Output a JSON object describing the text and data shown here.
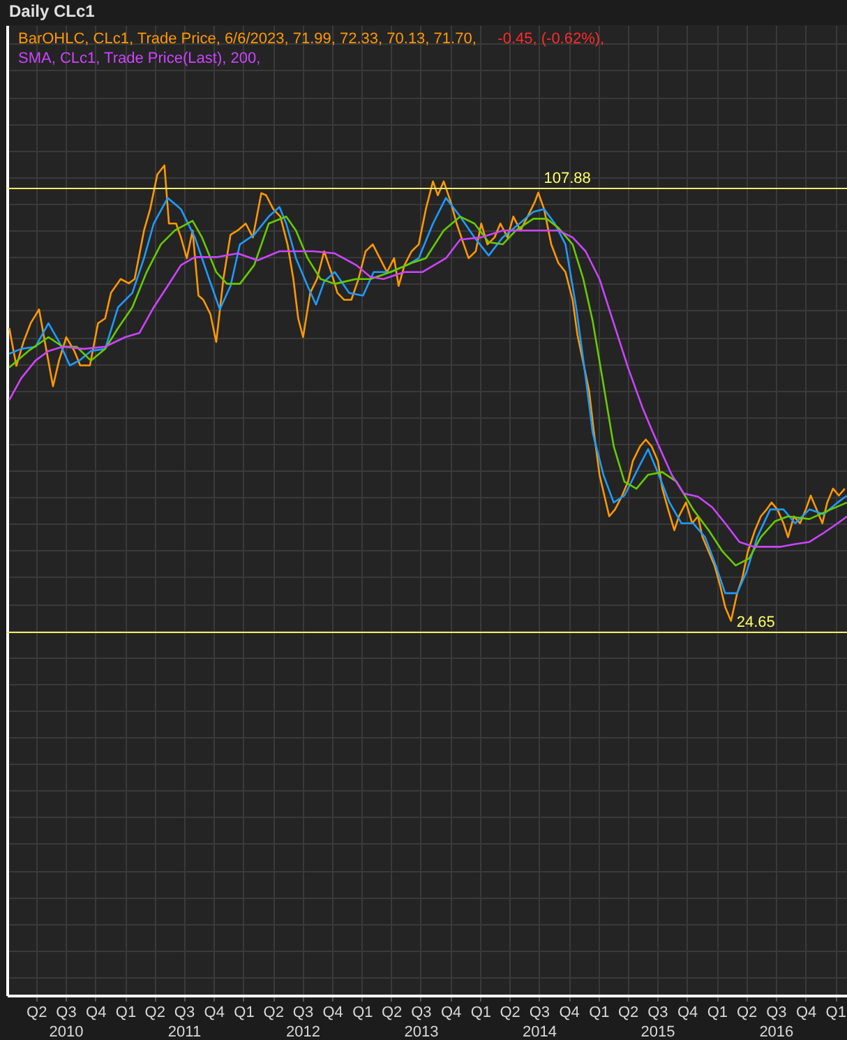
{
  "chart_data": {
    "type": "line",
    "title": "Daily CLc1",
    "annotations": [
      "-0.45, (-0.62%),"
    ],
    "xlim": [
      "2010-01-01",
      "2017-02-06"
    ],
    "ylim": [
      -43.4,
      138.5
    ],
    "xticks": [
      {
        "value": "2010-04-01",
        "label": "Q2"
      },
      {
        "value": "2010-07-01",
        "label": "Q3\n2010"
      },
      {
        "value": "2010-10-01",
        "label": "Q4"
      },
      {
        "value": "2011-01-01",
        "label": "Q1"
      },
      {
        "value": "2011-04-01",
        "label": "Q2"
      },
      {
        "value": "2011-07-01",
        "label": "Q3\n2011"
      },
      {
        "value": "2011-10-01",
        "label": "Q4"
      },
      {
        "value": "2012-01-01",
        "label": "Q1"
      },
      {
        "value": "2012-04-01",
        "label": "Q2"
      },
      {
        "value": "2012-07-01",
        "label": "Q3\n2012"
      },
      {
        "value": "2012-10-01",
        "label": "Q4"
      },
      {
        "value": "2013-01-01",
        "label": "Q1"
      },
      {
        "value": "2013-04-01",
        "label": "Q2"
      },
      {
        "value": "2013-07-01",
        "label": "Q3\n2013"
      },
      {
        "value": "2013-10-01",
        "label": "Q4"
      },
      {
        "value": "2014-01-01",
        "label": "Q1"
      },
      {
        "value": "2014-04-01",
        "label": "Q2"
      },
      {
        "value": "2014-07-01",
        "label": "Q3\n2014"
      },
      {
        "value": "2014-10-01",
        "label": "Q4"
      },
      {
        "value": "2015-01-01",
        "label": "Q1"
      },
      {
        "value": "2015-04-01",
        "label": "Q2"
      },
      {
        "value": "2015-07-01",
        "label": "Q3\n2015"
      },
      {
        "value": "2015-10-01",
        "label": "Q4"
      },
      {
        "value": "2016-01-01",
        "label": "Q1"
      },
      {
        "value": "2016-04-01",
        "label": "Q2"
      },
      {
        "value": "2016-07-01",
        "label": "Q3\n2016"
      },
      {
        "value": "2016-10-01",
        "label": "Q4"
      },
      {
        "value": "2017-01-01",
        "label": "Q1"
      }
    ],
    "yticks": [
      {
        "value": -40,
        "label": null
      },
      {
        "value": -35,
        "label": null
      },
      {
        "value": -30,
        "label": null
      },
      {
        "value": -25,
        "label": null
      },
      {
        "value": -20,
        "label": null
      },
      {
        "value": -15,
        "label": null
      },
      {
        "value": -10,
        "label": null
      },
      {
        "value": -5,
        "label": null
      },
      {
        "value": 0,
        "label": null
      },
      {
        "value": 5,
        "label": null
      },
      {
        "value": 10,
        "label": null
      },
      {
        "value": 15,
        "label": null
      },
      {
        "value": 20,
        "label": null
      },
      {
        "value": 25,
        "label": null
      },
      {
        "value": 30,
        "label": null
      },
      {
        "value": 35,
        "label": null
      },
      {
        "value": 40,
        "label": null
      },
      {
        "value": 45,
        "label": null
      },
      {
        "value": 50,
        "label": null
      },
      {
        "value": 55,
        "label": null
      },
      {
        "value": 60,
        "label": null
      },
      {
        "value": 65,
        "label": null
      },
      {
        "value": 70,
        "label": null
      },
      {
        "value": 75,
        "label": null
      },
      {
        "value": 80,
        "label": null
      },
      {
        "value": 85,
        "label": null
      },
      {
        "value": 90,
        "label": null
      },
      {
        "value": 95,
        "label": null
      },
      {
        "value": 100,
        "label": null
      },
      {
        "value": 105,
        "label": null
      },
      {
        "value": 110,
        "label": null
      },
      {
        "value": 115,
        "label": null
      },
      {
        "value": 120,
        "label": null
      },
      {
        "value": 125,
        "label": null
      },
      {
        "value": 130,
        "label": null
      },
      {
        "value": 135,
        "label": null
      }
    ],
    "tick_labels": "x",
    "grid": true,
    "legend": "top left",
    "line_style": "solid",
    "ref_lines": [
      {
        "axis": "y",
        "value": 107.88,
        "label": "107.88",
        "color": "#eeee66"
      },
      {
        "axis": "y",
        "value": 24.65,
        "label": "24.65",
        "color": "#eeee66"
      }
    ],
    "series": [
      {
        "name": "BarOHLC, CLc1, Trade Price, 6/6/2023, 71.99, 72.33, 70.13, 71.70,",
        "color": "#ff9900",
        "x": [
          "2010-01-08",
          "2010-01-30",
          "2010-02-21",
          "2010-03-15",
          "2010-04-10",
          "2010-04-28",
          "2010-05-23",
          "2010-06-11",
          "2010-07-03",
          "2010-07-28",
          "2010-08-15",
          "2010-09-14",
          "2010-10-09",
          "2010-10-31",
          "2010-11-18",
          "2010-12-18",
          "2011-01-12",
          "2011-01-30",
          "2011-02-28",
          "2011-03-19",
          "2011-04-10",
          "2011-05-02",
          "2011-05-16",
          "2011-06-07",
          "2011-06-22",
          "2011-07-10",
          "2011-07-28",
          "2011-08-15",
          "2011-08-30",
          "2011-09-21",
          "2011-10-09",
          "2011-10-31",
          "2011-11-22",
          "2011-12-14",
          "2012-01-08",
          "2012-01-30",
          "2012-02-25",
          "2012-03-11",
          "2012-04-02",
          "2012-04-24",
          "2012-05-16",
          "2012-06-03",
          "2012-06-18",
          "2012-07-03",
          "2012-07-25",
          "2012-08-15",
          "2012-09-06",
          "2012-09-28",
          "2012-10-17",
          "2012-11-07",
          "2012-11-29",
          "2012-12-21",
          "2013-01-12",
          "2013-02-03",
          "2013-02-25",
          "2013-03-19",
          "2013-04-10",
          "2013-04-24",
          "2013-05-12",
          "2013-06-03",
          "2013-06-25",
          "2013-07-17",
          "2013-08-08",
          "2013-08-23",
          "2013-09-10",
          "2013-10-02",
          "2013-10-20",
          "2013-11-11",
          "2013-11-26",
          "2013-12-18",
          "2014-01-04",
          "2014-01-23",
          "2014-02-14",
          "2014-03-04",
          "2014-03-26",
          "2014-04-13",
          "2014-05-05",
          "2014-05-27",
          "2014-06-18",
          "2014-06-29",
          "2014-07-17",
          "2014-08-08",
          "2014-08-30",
          "2014-09-21",
          "2014-10-13",
          "2014-10-28",
          "2014-11-15",
          "2014-12-03",
          "2014-12-18",
          "2015-01-04",
          "2015-01-19",
          "2015-02-03",
          "2015-02-21",
          "2015-03-15",
          "2015-04-02",
          "2015-04-17",
          "2015-05-09",
          "2015-05-27",
          "2015-06-14",
          "2015-07-03",
          "2015-07-17",
          "2015-08-04",
          "2015-08-23",
          "2015-09-06",
          "2015-09-28",
          "2015-10-17",
          "2015-11-04",
          "2015-11-18",
          "2015-12-07",
          "2015-12-25",
          "2016-01-12",
          "2016-01-27",
          "2016-02-14",
          "2016-03-04",
          "2016-03-19",
          "2016-04-06",
          "2016-04-28",
          "2016-05-16",
          "2016-06-03",
          "2016-06-18",
          "2016-07-06",
          "2016-07-25",
          "2016-08-08",
          "2016-08-26",
          "2016-09-14",
          "2016-10-02",
          "2016-10-17",
          "2016-11-04",
          "2016-11-22",
          "2016-12-07",
          "2016-12-25",
          "2017-01-12",
          "2017-01-30"
        ],
        "values": [
          81.7,
          74.6,
          79.1,
          82.6,
          85.2,
          79.1,
          70.8,
          75.7,
          80.0,
          77.4,
          74.7,
          74.7,
          82.6,
          83.5,
          88.3,
          90.9,
          90.1,
          90.9,
          100.0,
          104.0,
          110.5,
          112.2,
          101.3,
          101.3,
          98.7,
          94.8,
          100.0,
          87.8,
          87.0,
          84.3,
          79.1,
          90.9,
          99.2,
          100.0,
          101.3,
          98.7,
          107.0,
          106.6,
          104.0,
          102.6,
          97.4,
          90.9,
          83.5,
          80.0,
          88.3,
          90.9,
          96.1,
          92.2,
          88.3,
          87.0,
          87.0,
          90.9,
          96.1,
          97.4,
          94.8,
          92.2,
          94.8,
          89.6,
          93.5,
          96.1,
          97.4,
          104.0,
          109.2,
          106.6,
          109.2,
          105.3,
          101.3,
          97.4,
          94.8,
          96.1,
          101.3,
          97.4,
          98.7,
          101.3,
          98.7,
          102.6,
          100.0,
          102.6,
          105.3,
          107.1,
          104.0,
          97.4,
          93.9,
          92.2,
          87.0,
          80.4,
          75.2,
          69.9,
          62.1,
          54.2,
          50.3,
          46.4,
          47.7,
          50.3,
          52.9,
          56.8,
          59.5,
          60.8,
          59.5,
          56.8,
          51.6,
          47.7,
          43.8,
          46.4,
          49.0,
          45.1,
          46.4,
          42.5,
          39.8,
          37.2,
          33.3,
          29.4,
          26.8,
          32.0,
          34.6,
          39.8,
          43.8,
          46.4,
          47.7,
          49.0,
          47.7,
          45.1,
          42.5,
          46.4,
          45.1,
          47.7,
          50.3,
          47.7,
          45.1,
          49.0,
          51.6,
          50.3,
          51.6
        ]
      },
      {
        "color": "#1e9bff",
        "x": [
          "2010-01-08",
          "2010-02-14",
          "2010-03-30",
          "2010-05-09",
          "2010-06-11",
          "2010-07-14",
          "2010-08-12",
          "2010-09-17",
          "2010-10-31",
          "2010-12-10",
          "2011-01-23",
          "2011-02-28",
          "2011-03-30",
          "2011-05-12",
          "2011-06-22",
          "2011-08-04",
          "2011-09-17",
          "2011-10-20",
          "2011-11-22",
          "2011-12-21",
          "2012-02-03",
          "2012-03-19",
          "2012-04-21",
          "2012-05-12",
          "2012-06-11",
          "2012-07-17",
          "2012-08-12",
          "2012-09-06",
          "2012-10-09",
          "2012-11-22",
          "2013-01-04",
          "2013-02-06",
          "2013-03-30",
          "2013-05-20",
          "2013-06-25",
          "2013-08-08",
          "2013-09-17",
          "2013-10-31",
          "2013-12-14",
          "2014-01-27",
          "2014-03-11",
          "2014-05-02",
          "2014-06-14",
          "2014-07-17",
          "2014-08-19",
          "2014-09-21",
          "2014-10-24",
          "2014-11-22",
          "2014-12-14",
          "2015-01-16",
          "2015-02-17",
          "2015-03-22",
          "2015-05-05",
          "2015-06-03",
          "2015-07-06",
          "2015-08-08",
          "2015-09-14",
          "2015-10-20",
          "2015-11-26",
          "2015-12-29",
          "2016-01-27",
          "2016-03-04",
          "2016-04-02",
          "2016-05-05",
          "2016-06-14",
          "2016-07-25",
          "2016-08-30",
          "2016-10-13",
          "2016-11-26",
          "2017-01-08",
          "2017-02-06"
        ],
        "values": [
          76.9,
          77.8,
          78.2,
          82.6,
          79.1,
          74.7,
          75.6,
          77.4,
          77.8,
          85.6,
          88.3,
          94.8,
          101.3,
          106.1,
          104.0,
          98.7,
          90.9,
          85.2,
          89.6,
          97.4,
          99.2,
          102.6,
          104.4,
          101.3,
          94.8,
          89.6,
          86.1,
          90.4,
          92.2,
          88.3,
          87.8,
          92.2,
          92.2,
          93.5,
          94.8,
          101.3,
          106.1,
          102.6,
          98.7,
          95.3,
          98.7,
          101.3,
          103.5,
          104.0,
          101.3,
          97.4,
          85.6,
          72.6,
          62.1,
          54.2,
          49.0,
          50.3,
          55.6,
          59.0,
          54.2,
          49.0,
          45.1,
          45.1,
          42.5,
          37.2,
          32.0,
          32.0,
          36.0,
          42.5,
          47.7,
          47.7,
          45.1,
          47.7,
          46.8,
          49.0,
          50.3
        ]
      },
      {
        "color": "#66cc00",
        "x": [
          "2010-01-08",
          "2010-03-08",
          "2010-05-09",
          "2010-06-22",
          "2010-08-04",
          "2010-09-17",
          "2010-10-31",
          "2010-12-10",
          "2011-01-23",
          "2011-03-08",
          "2011-04-21",
          "2011-06-03",
          "2011-07-28",
          "2011-08-26",
          "2011-10-09",
          "2011-11-11",
          "2011-12-21",
          "2012-02-03",
          "2012-03-19",
          "2012-05-12",
          "2012-06-11",
          "2012-07-17",
          "2012-08-26",
          "2012-10-09",
          "2012-12-14",
          "2013-01-27",
          "2013-03-30",
          "2013-06-03",
          "2013-07-17",
          "2013-09-10",
          "2013-10-31",
          "2013-12-14",
          "2014-01-27",
          "2014-03-11",
          "2014-04-21",
          "2014-06-14",
          "2014-07-25",
          "2014-08-30",
          "2014-10-13",
          "2014-11-15",
          "2014-12-14",
          "2015-01-16",
          "2015-02-17",
          "2015-03-22",
          "2015-04-28",
          "2015-06-03",
          "2015-07-17",
          "2015-08-30",
          "2015-10-20",
          "2015-12-07",
          "2016-01-19",
          "2016-02-28",
          "2016-04-10",
          "2016-05-16",
          "2016-06-29",
          "2016-08-08",
          "2016-10-13",
          "2016-12-18",
          "2017-02-06"
        ],
        "values": [
          74.3,
          77.4,
          80.0,
          78.2,
          78.2,
          75.6,
          77.8,
          81.7,
          85.6,
          92.2,
          97.4,
          100.0,
          101.8,
          98.7,
          92.2,
          90.0,
          90.0,
          93.5,
          101.3,
          102.6,
          100.0,
          94.8,
          90.9,
          90.0,
          90.9,
          90.9,
          92.2,
          93.9,
          94.8,
          100.0,
          102.6,
          101.3,
          97.8,
          97.4,
          100.0,
          102.2,
          102.2,
          100.5,
          97.4,
          90.9,
          83.0,
          71.2,
          59.5,
          52.9,
          51.6,
          54.2,
          54.7,
          52.9,
          47.7,
          43.8,
          39.8,
          37.2,
          38.5,
          42.5,
          45.5,
          46.4,
          45.9,
          47.7,
          49.0
        ]
      },
      {
        "name": "SMA, CLc1, Trade Price(Last), 200,",
        "color": "#cc44ff",
        "x": [
          "2010-01-08",
          "2010-02-14",
          "2010-03-30",
          "2010-05-09",
          "2010-06-22",
          "2010-08-26",
          "2010-10-31",
          "2011-01-01",
          "2011-02-14",
          "2011-03-30",
          "2011-05-12",
          "2011-06-22",
          "2011-08-04",
          "2011-10-09",
          "2011-12-14",
          "2012-02-14",
          "2012-04-21",
          "2012-06-03",
          "2012-08-04",
          "2012-10-09",
          "2012-12-14",
          "2013-01-27",
          "2013-03-08",
          "2013-05-12",
          "2013-07-06",
          "2013-09-17",
          "2013-10-31",
          "2014-01-04",
          "2014-03-11",
          "2014-05-12",
          "2014-07-17",
          "2014-08-30",
          "2014-10-13",
          "2014-11-22",
          "2015-01-04",
          "2015-02-17",
          "2015-04-02",
          "2015-05-16",
          "2015-06-18",
          "2015-07-17",
          "2015-08-15",
          "2015-09-21",
          "2015-11-04",
          "2015-12-18",
          "2016-01-27",
          "2016-03-11",
          "2016-04-24",
          "2016-06-07",
          "2016-07-17",
          "2016-08-30",
          "2016-10-13",
          "2016-11-26",
          "2017-01-08",
          "2017-02-06"
        ],
        "values": [
          68.2,
          72.3,
          75.6,
          77.4,
          78.2,
          77.8,
          78.2,
          80.0,
          80.8,
          85.6,
          89.6,
          93.5,
          95.0,
          95.0,
          95.7,
          94.4,
          96.1,
          96.1,
          96.1,
          95.7,
          93.5,
          91.3,
          90.9,
          92.2,
          92.2,
          94.8,
          98.3,
          98.7,
          100.0,
          100.0,
          100.0,
          100.0,
          98.7,
          96.1,
          90.9,
          82.6,
          74.3,
          66.9,
          62.1,
          58.1,
          54.2,
          50.7,
          50.1,
          48.1,
          45.1,
          41.6,
          40.7,
          40.7,
          40.7,
          41.2,
          41.6,
          43.3,
          45.1,
          46.4
        ]
      }
    ]
  }
}
